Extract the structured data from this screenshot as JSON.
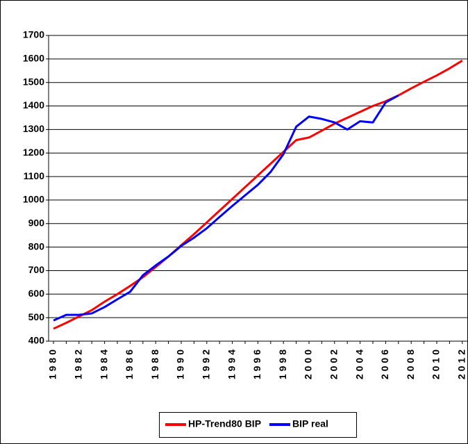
{
  "chart_data": {
    "type": "line",
    "categories": [
      "1980",
      null,
      "1982",
      null,
      "1984",
      null,
      "1986",
      null,
      "1988",
      null,
      "1990",
      null,
      "1992",
      null,
      "1994",
      null,
      "1996",
      null,
      "1998",
      null,
      "2000",
      null,
      "2002",
      null,
      "2004",
      null,
      "2006",
      null,
      "2008",
      null,
      "2010",
      null,
      "2012"
    ],
    "series": [
      {
        "name": "HP-Trend80 BIP",
        "color": "#ff0000",
        "values": [
          453,
          478,
          505,
          532,
          568,
          600,
          635,
          672,
          715,
          760,
          808,
          855,
          905,
          955,
          1005,
          1055,
          1105,
          1155,
          1205,
          1255,
          1266,
          1295,
          1325,
          1350,
          1375,
          1400,
          1420,
          1445,
          1475,
          1503,
          1530,
          1560,
          1593
        ]
      },
      {
        "name": "BIP real",
        "color": "#0000ff",
        "values": [
          488,
          512,
          512,
          518,
          545,
          578,
          610,
          680,
          722,
          760,
          805,
          840,
          880,
          928,
          975,
          1020,
          1065,
          1120,
          1195,
          1312,
          1355,
          1345,
          1330,
          1300,
          1335,
          1330,
          1415,
          1445,
          null,
          null,
          null,
          null,
          null
        ]
      }
    ],
    "ylim": [
      400,
      1700
    ],
    "yticks": [
      400,
      500,
      600,
      700,
      800,
      900,
      1000,
      1100,
      1200,
      1300,
      1400,
      1500,
      1600,
      1700
    ],
    "grid": true,
    "legend": "bottom"
  }
}
